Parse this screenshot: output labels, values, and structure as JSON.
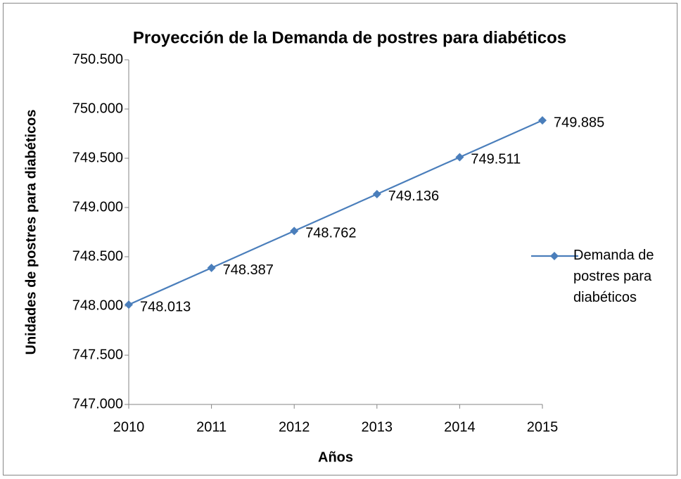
{
  "chart_data": {
    "type": "line",
    "title": "Proyección de la Demanda de postres para diabéticos",
    "x_label": "Años",
    "y_label": "Unidades de postres para diabéticos",
    "x": [
      2010,
      2011,
      2012,
      2013,
      2014,
      2015
    ],
    "xlim": [
      2010,
      2015
    ],
    "xticks": [
      2010,
      2011,
      2012,
      2013,
      2014,
      2015
    ],
    "ylim": [
      747000,
      750500
    ],
    "yticks": [
      {
        "value": 747000,
        "label": "747.000"
      },
      {
        "value": 747500,
        "label": "747.500"
      },
      {
        "value": 748000,
        "label": "748.000"
      },
      {
        "value": 748500,
        "label": "748.500"
      },
      {
        "value": 749000,
        "label": "749.000"
      },
      {
        "value": 749500,
        "label": "749.500"
      },
      {
        "value": 750000,
        "label": "750.000"
      },
      {
        "value": 750500,
        "label": "750.500"
      }
    ],
    "grid": false,
    "legend": "right",
    "series": [
      {
        "name": "Demanda de postres para diabéticos",
        "color": "#4a7ebb",
        "values": [
          748013,
          748387,
          748762,
          749136,
          749511,
          749885
        ],
        "value_labels": [
          "748.013",
          "748.387",
          "748.762",
          "749.136",
          "749.511",
          "749.885"
        ]
      }
    ]
  }
}
